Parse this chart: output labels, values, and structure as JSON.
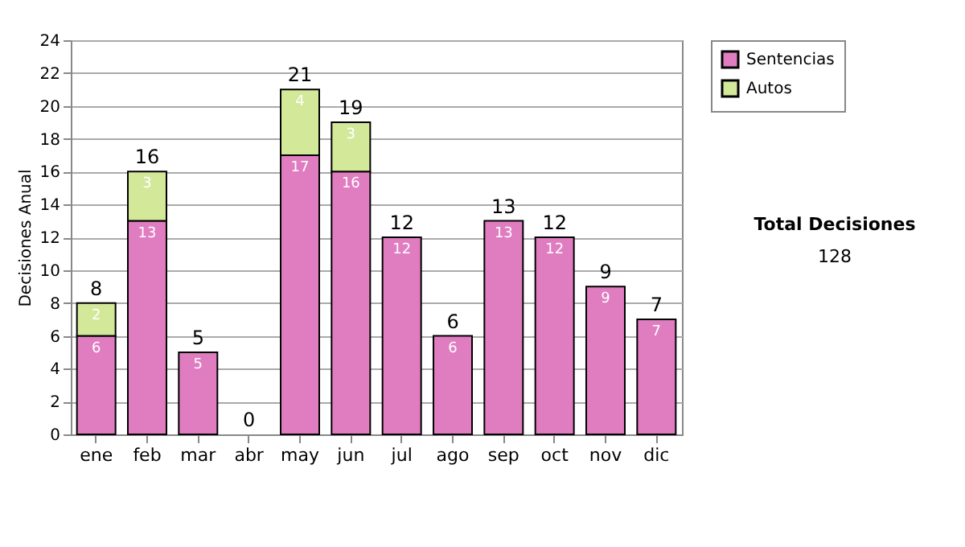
{
  "chart_data": {
    "type": "bar",
    "stacked": true,
    "ylabel": "Decisiones Anual",
    "categories": [
      "ene",
      "feb",
      "mar",
      "abr",
      "may",
      "jun",
      "jul",
      "ago",
      "sep",
      "oct",
      "nov",
      "dic"
    ],
    "series": [
      {
        "name": "Sentencias",
        "color": "#e07cc0",
        "values": [
          6,
          13,
          5,
          0,
          17,
          16,
          12,
          6,
          13,
          12,
          9,
          7
        ],
        "value_labels": [
          "6",
          "13",
          "5",
          null,
          "17",
          "16",
          "12",
          "6",
          "13",
          "12",
          "9",
          "7"
        ]
      },
      {
        "name": "Autos",
        "color": "#d4e89a",
        "values": [
          2,
          3,
          0,
          0,
          4,
          3,
          0,
          0,
          0,
          0,
          0,
          0
        ],
        "value_labels": [
          "2",
          "3",
          null,
          null,
          "4",
          "3",
          null,
          null,
          null,
          null,
          null,
          null
        ]
      }
    ],
    "totals": [
      "8",
      "16",
      "5",
      "0",
      "21",
      "19",
      "12",
      "6",
      "13",
      "12",
      "9",
      "7"
    ],
    "ylim": [
      0,
      24
    ],
    "yticks": [
      0,
      2,
      4,
      6,
      8,
      10,
      12,
      14,
      16,
      18,
      20,
      22,
      24
    ],
    "grid": "y",
    "legend": "right",
    "annotations": [
      "Total Decisiones",
      "128"
    ]
  }
}
